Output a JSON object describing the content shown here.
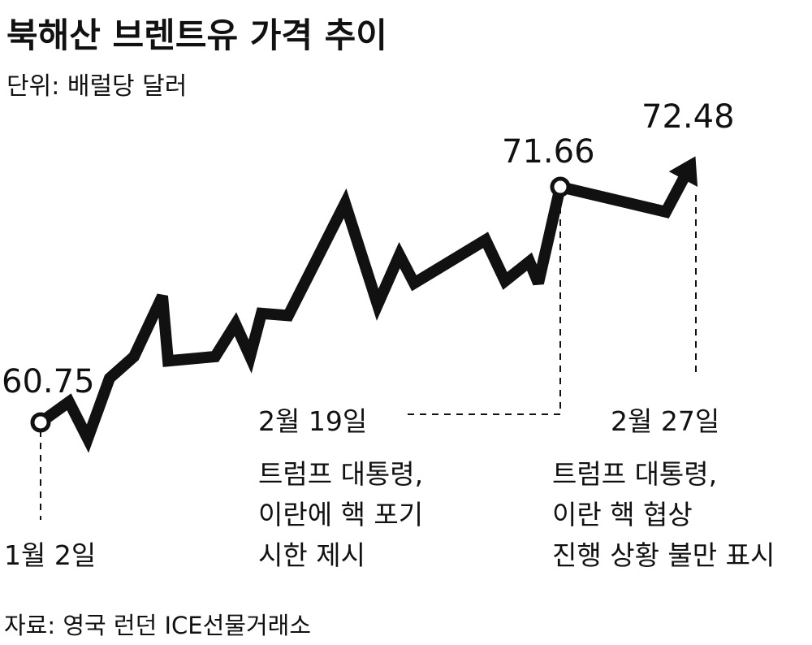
{
  "chart_data": {
    "type": "line",
    "title": "북해산 브렌트유 가격 추이",
    "subtitle": "단위: 배럴당 달러",
    "source": "자료: 영국 런던 ICE선물거래소",
    "values": [
      60.75,
      61.7,
      60.0,
      62.8,
      63.8,
      66.6,
      63.6,
      63.8,
      65.3,
      63.8,
      65.8,
      65.7,
      70.9,
      66.2,
      68.5,
      67.2,
      69.2,
      67.3,
      68.2,
      67.2,
      71.66,
      70.5,
      72.48
    ],
    "grid": false,
    "line_color": "#111111",
    "annotations": {
      "start": {
        "value_label": "60.75",
        "date": "1월 2일"
      },
      "peak": {
        "value_label": "71.66",
        "date": "2월 19일",
        "lines": [
          "트럼프 대통령,",
          "이란에 핵 포기",
          "시한 제시"
        ]
      },
      "end": {
        "value_label": "72.48",
        "date": "2월 27일",
        "lines": [
          "트럼프 대통령,",
          "이란 핵 협상",
          "진행 상황 불만 표시"
        ]
      }
    }
  }
}
